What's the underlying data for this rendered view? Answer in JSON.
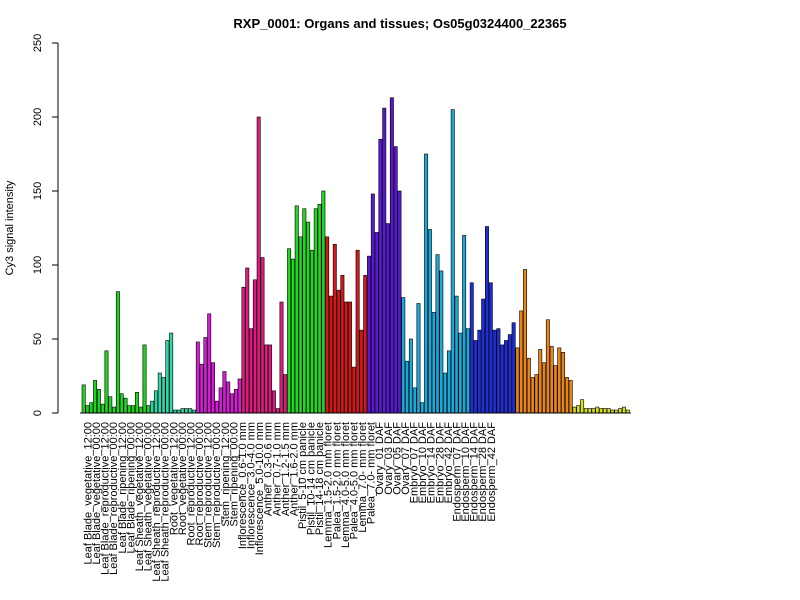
{
  "chart_data": {
    "type": "bar",
    "title": "RXP_0001: Organs and tissues; Os05g0324400_22365",
    "xlabel": "",
    "ylabel": "Cy3 signal intensity",
    "ylim": [
      0,
      250
    ],
    "yticks": [
      0,
      50,
      100,
      150,
      200,
      250
    ],
    "grid": false,
    "legend": "none",
    "groups": [
      {
        "labels": [
          "Leaf Blade_vegetative_12:00",
          "Leaf Blade_vegetative_00:00",
          "Leaf Blade_reproductive_12:00",
          "Leaf Blade_reproductive_00:00",
          "Leaf Blade_ripening_12:00",
          "Leaf Blade_ripening_00:00"
        ],
        "color": "#1fd41f",
        "values": [
          19,
          5,
          7,
          22,
          16,
          6,
          42,
          11,
          4,
          82,
          13,
          10,
          5,
          5,
          14,
          4,
          46,
          5
        ]
      },
      {
        "labels": [
          "Leaf Sheath_vegetative_12:00",
          "Leaf Sheath_vegetative_00:00",
          "Leaf Sheath_reproductive_12:00",
          "Leaf Sheath_reproductive_00:00"
        ],
        "color": "#30d6a8",
        "values": [
          8,
          15,
          27,
          24,
          49,
          54,
          2,
          2,
          3,
          3,
          3,
          2
        ]
      },
      {
        "labels": [
          "Root_vegetative_12:00",
          "Root_vegetative_00:00",
          "Root_reproductive_12:00",
          "Root_reproductive_00:00"
        ],
        "color": "#d61bd6",
        "values": [
          48,
          33,
          51,
          67,
          34,
          8,
          17,
          28,
          21,
          13,
          16,
          23
        ]
      },
      {
        "labels": [
          "Stem_reproductive_12:00",
          "Stem_reproductive_00:00",
          "Stem_ripening_12:00",
          "Stem_ripening_00:00"
        ],
        "color": "#de1a7f",
        "values": [
          85,
          98,
          57,
          90,
          200,
          105,
          46,
          46,
          15,
          3,
          75,
          26
        ]
      },
      {
        "labels": [
          "Inflorescence_0.6-1.0 mm",
          "Inflorescence_3.0-4.0 mm",
          "Inflorescence_5.0-10.0 mm"
        ],
        "color": "#22d622",
        "values": [
          111,
          104,
          140,
          119,
          138,
          129,
          110,
          138,
          141,
          150
        ]
      },
      {
        "labels": [
          "Anther_0.3-0.6 mm",
          "Anther_0.7-1.0 mm",
          "Anther_1.2-1.5 mm",
          "Anther_1.6-2.0 mm"
        ],
        "color": "#d41818",
        "values": [
          119,
          79,
          114,
          83,
          93,
          75,
          75,
          31,
          110,
          56,
          93
        ]
      },
      {
        "labels": [
          "Pistil_5-10 cm panicle",
          "Pistil_10-14 cm panicle",
          "Pistil_14-18 cm panicle"
        ],
        "color": "#5a18d4",
        "values": [
          106,
          148,
          122,
          185,
          206,
          128,
          213,
          180,
          150
        ]
      },
      {
        "labels": [
          "Lemma_1.5-2.0 mm floret",
          "Palea_1.5-2.0 mm floret",
          "Lemma_4.0-5.0 mm floret",
          "Palea_4.0-5.0 mm floret",
          "Lemma_7.0- mm floret",
          "Palea_7.0- mm floret"
        ],
        "color": "#1aa8d8",
        "values": [
          78,
          35,
          50,
          17,
          74,
          7,
          175,
          124,
          68,
          107,
          96,
          27,
          42,
          205,
          79,
          54,
          120,
          57
        ]
      },
      {
        "labels": [
          "Ovary_01 DAF",
          "Ovary_03 DAF",
          "Ovary_05 DAF",
          "Ovary_07 DAF"
        ],
        "color": "#1f2ed8",
        "values": [
          88,
          49,
          56,
          77,
          126,
          88,
          56,
          57,
          46,
          49,
          53,
          61
        ]
      },
      {
        "labels": [
          "Embryo_07 DAF",
          "Embryo_10 DAF",
          "Embryo_14 DAF",
          "Embryo_28 DAF",
          "Embryo_42 DAF"
        ],
        "color": "#e8841a",
        "values": [
          44,
          69,
          97,
          37,
          24,
          26,
          43,
          34,
          63,
          45,
          32,
          44,
          41,
          24,
          22
        ]
      },
      {
        "labels": [
          "Endosperm_07 DAF",
          "Endosperm_10 DAF",
          "Endosperm_14 DAF",
          "Endosperm_28 DAF",
          "Endosperm_42 DAF"
        ],
        "color": "#d6e01a",
        "values": [
          4,
          5,
          9,
          3,
          3,
          3,
          4,
          3,
          3,
          3,
          2,
          2,
          3,
          4,
          2
        ]
      }
    ]
  }
}
